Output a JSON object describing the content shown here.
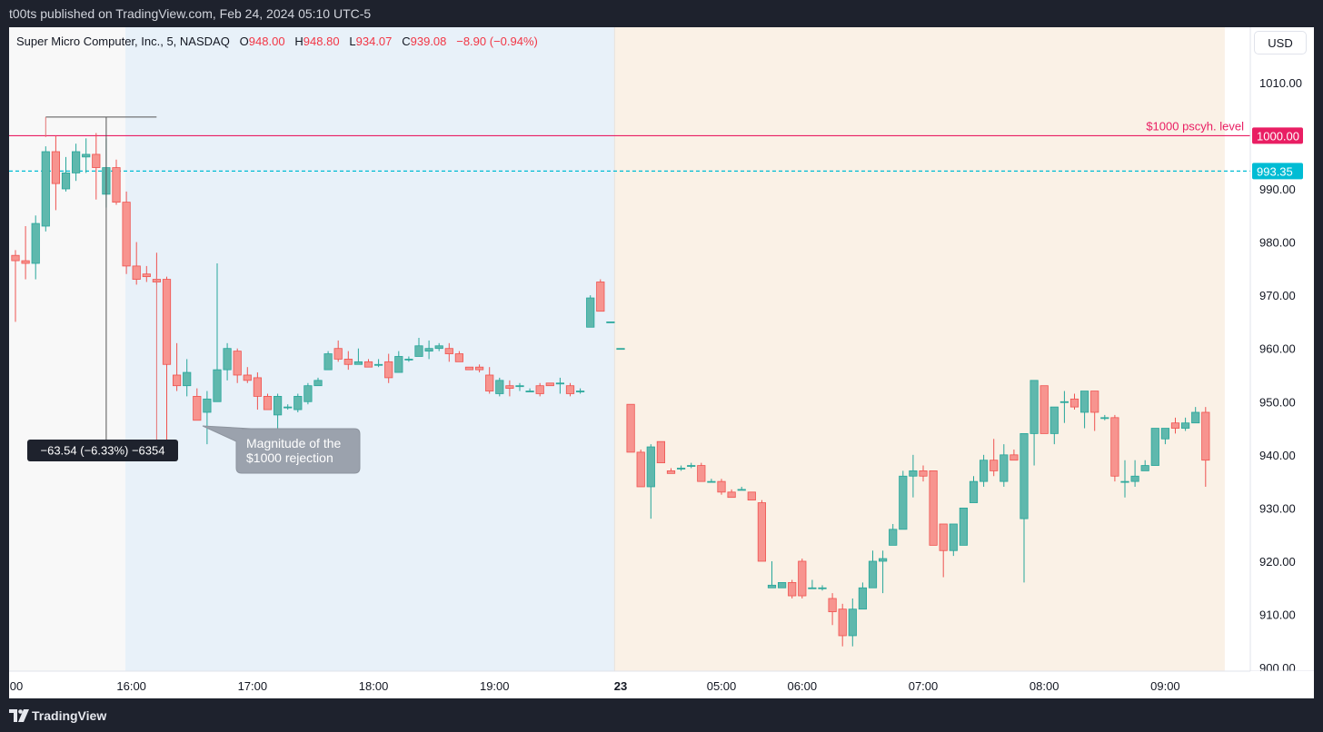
{
  "header": {
    "published_text": "t00ts published on TradingView.com, Feb 24, 2024 05:10 UTC-5"
  },
  "legend": {
    "symbol": "Super Micro Computer, Inc., 5, NASDAQ",
    "o_label": "O",
    "o_value": "948.00",
    "h_label": "H",
    "h_value": "948.80",
    "l_label": "L",
    "l_value": "934.07",
    "c_label": "C",
    "c_value": "939.08",
    "change": "−8.90 (−0.94%)"
  },
  "currency_button": "USD",
  "footer": {
    "brand": "TradingView",
    "logo_icon": "tradingview-logo-icon"
  },
  "colors": {
    "up": "#26a69a",
    "up_fill": "#5fb8ad",
    "down": "#ef5350",
    "down_fill": "#f7948f",
    "level_line": "#e91e63",
    "dashed_line": "#00bcd4",
    "session_blue": "#e8f1f9",
    "session_orange": "#faf1e6",
    "session_grey": "#f8f8f8"
  },
  "chart_data": {
    "type": "candlestick",
    "ylim": [
      895,
      1018
    ],
    "y_ticks": [
      "1010.00",
      "990.00",
      "980.00",
      "970.00",
      "960.00",
      "950.00",
      "940.00",
      "930.00",
      "920.00",
      "910.00",
      "900.00"
    ],
    "x_tick_labels": [
      {
        "label": "00",
        "bar": 0,
        "bold": false
      },
      {
        "label": "16:00",
        "bar": 11.5,
        "bold": false
      },
      {
        "label": "17:00",
        "bar": 23.5,
        "bold": false
      },
      {
        "label": "18:00",
        "bar": 35.5,
        "bold": false
      },
      {
        "label": "19:00",
        "bar": 47.5,
        "bold": false
      },
      {
        "label": "23",
        "bar": 60,
        "bold": true
      },
      {
        "label": "05:00",
        "bar": 70,
        "bold": false
      },
      {
        "label": "06:00",
        "bar": 78,
        "bold": false
      },
      {
        "label": "07:00",
        "bar": 90,
        "bold": false
      },
      {
        "label": "08:00",
        "bar": 102,
        "bold": false
      },
      {
        "label": "09:00",
        "bar": 114,
        "bold": false
      }
    ],
    "sessions": [
      {
        "from_bar": -1,
        "to_bar": 10.9,
        "color": "session_grey"
      },
      {
        "from_bar": 10.9,
        "to_bar": 59.4,
        "color": "session_blue"
      },
      {
        "from_bar": 59.4,
        "to_bar": 119.9,
        "color": "session_orange"
      }
    ],
    "horizontal_levels": [
      {
        "value": 1000.0,
        "label": "1000.00",
        "text": "$1000 pscyh. level",
        "color_key": "level_line",
        "style": "solid"
      },
      {
        "value": 993.35,
        "label": "993.35",
        "color_key": "dashed_line",
        "style": "dashed"
      }
    ],
    "measure": {
      "from_bar": 3,
      "to_bar": 14,
      "top_value": 1003.5,
      "bottom_value": 940.0,
      "arrow_bar": 9,
      "label": "−63.54 (−6.33%) −6354"
    },
    "callout": {
      "lines": [
        "Magnitude of the",
        "$1000 rejection"
      ]
    },
    "candles": [
      [
        977.5,
        978.5,
        965,
        976.5
      ],
      [
        976.5,
        983,
        973,
        976
      ],
      [
        976,
        985,
        973,
        983.5
      ],
      [
        983,
        998,
        982,
        997
      ],
      [
        997,
        1000,
        986,
        991
      ],
      [
        990,
        996,
        989.5,
        993
      ],
      [
        993,
        998.5,
        991.5,
        997
      ],
      [
        996,
        999.5,
        993,
        996.5
      ],
      [
        996.5,
        1000.5,
        988,
        994
      ],
      [
        989,
        999.5,
        986.5,
        994
      ],
      [
        994,
        995.5,
        987,
        987.5
      ],
      [
        987.5,
        989.5,
        974,
        975.5
      ],
      [
        975.5,
        980,
        972,
        973
      ],
      [
        974,
        975.5,
        972.5,
        973.5
      ],
      [
        973,
        978,
        972,
        972.5
      ],
      [
        973,
        973.5,
        940,
        957
      ],
      [
        955,
        961,
        952,
        953
      ],
      [
        953,
        958,
        951,
        955.5
      ],
      [
        951,
        952.5,
        946.5,
        946.5
      ],
      [
        948,
        952,
        942,
        950.5
      ],
      [
        950,
        976,
        950,
        956
      ],
      [
        956,
        961,
        954,
        960
      ],
      [
        959.5,
        960,
        953.5,
        955
      ],
      [
        955,
        956.5,
        953.5,
        954
      ],
      [
        954.5,
        955.5,
        948.5,
        951
      ],
      [
        951,
        951.5,
        948.5,
        948.5
      ],
      [
        947.5,
        951.5,
        945,
        951
      ],
      [
        949,
        949.5,
        948.5,
        949
      ],
      [
        948.5,
        951.5,
        948,
        951
      ],
      [
        950,
        953.5,
        949.5,
        953
      ],
      [
        953,
        954.5,
        953,
        954
      ],
      [
        956,
        959.5,
        956,
        959
      ],
      [
        960,
        961.5,
        957.5,
        958
      ],
      [
        958,
        959.5,
        956,
        957
      ],
      [
        957,
        960,
        957,
        957.5
      ],
      [
        957.5,
        958,
        956.5,
        956.5
      ],
      [
        957,
        958,
        956.5,
        957
      ],
      [
        957.5,
        959,
        953.5,
        954.5
      ],
      [
        955.5,
        959.5,
        955.5,
        958.5
      ],
      [
        958,
        958.5,
        957.5,
        958
      ],
      [
        958.5,
        962,
        958.5,
        960.5
      ],
      [
        959.5,
        961.5,
        958,
        960
      ],
      [
        960,
        961,
        959.5,
        960.5
      ],
      [
        960,
        961,
        957.5,
        959
      ],
      [
        959,
        959.5,
        957.5,
        957.5
      ],
      [
        956.5,
        956.5,
        956,
        956
      ],
      [
        956.5,
        957,
        955.5,
        956
      ],
      [
        955,
        956.5,
        951.5,
        952
      ],
      [
        951.5,
        954.5,
        951,
        954
      ],
      [
        953,
        954,
        951,
        952.5
      ],
      [
        953,
        953.5,
        952,
        953
      ],
      [
        952,
        952.5,
        952,
        952
      ],
      [
        953,
        953.5,
        951,
        951.5
      ],
      [
        953.5,
        953.5,
        953,
        953
      ],
      [
        953.5,
        954.5,
        951.5,
        953.5
      ],
      [
        953,
        953.5,
        951,
        951.5
      ],
      [
        952,
        952.5,
        951.5,
        952
      ],
      [
        964,
        970,
        964,
        969.5
      ],
      [
        972.5,
        973,
        967,
        967
      ],
      [
        965,
        965,
        965,
        965
      ],
      [
        960,
        960,
        960,
        960
      ],
      [
        949.5,
        949.5,
        940.5,
        940.5
      ],
      [
        940.5,
        941,
        934,
        934
      ],
      [
        934,
        942,
        928,
        941.5
      ],
      [
        942.5,
        942.5,
        938.5,
        938.5
      ],
      [
        937,
        937.5,
        936.5,
        936.5
      ],
      [
        937.5,
        938,
        937,
        937.5
      ],
      [
        938,
        938.5,
        937.5,
        938
      ],
      [
        938,
        938.5,
        935,
        935
      ],
      [
        935,
        935.5,
        935,
        935
      ],
      [
        935,
        935.5,
        932.5,
        933
      ],
      [
        933,
        933.5,
        932,
        932
      ],
      [
        933.5,
        934,
        933.5,
        933.5
      ],
      [
        933,
        933,
        931.5,
        931.5
      ],
      [
        931,
        931.5,
        920,
        920
      ],
      [
        915,
        920,
        915,
        915.5
      ],
      [
        915,
        916,
        915,
        916
      ],
      [
        916,
        916.5,
        913,
        913.5
      ],
      [
        920,
        920.5,
        913,
        913.5
      ],
      [
        915,
        916.5,
        915,
        915
      ],
      [
        915,
        915.5,
        914.5,
        915
      ],
      [
        913,
        914,
        908,
        910.5
      ],
      [
        911,
        912,
        904,
        906
      ],
      [
        906,
        913,
        904,
        911
      ],
      [
        911,
        916,
        911,
        915
      ],
      [
        915,
        922,
        915,
        920
      ],
      [
        920,
        922,
        914,
        920.5
      ],
      [
        923,
        927,
        923,
        926
      ],
      [
        926,
        937,
        926,
        936
      ],
      [
        936,
        940,
        932,
        937
      ],
      [
        937,
        938,
        935,
        936
      ],
      [
        937,
        937,
        923,
        923
      ],
      [
        927,
        927,
        917,
        922
      ],
      [
        922,
        927,
        921,
        927
      ],
      [
        923,
        930,
        923,
        930
      ],
      [
        931,
        936,
        931,
        935
      ],
      [
        935,
        940,
        934,
        939
      ],
      [
        939,
        943,
        936,
        937
      ],
      [
        935,
        942,
        934,
        940
      ],
      [
        940,
        941,
        939,
        939
      ],
      [
        928,
        944,
        916,
        944
      ],
      [
        944,
        954,
        938,
        954
      ],
      [
        953,
        953,
        944,
        944
      ],
      [
        944,
        949,
        942,
        949
      ],
      [
        950,
        952,
        946,
        950
      ],
      [
        950.5,
        951.5,
        948.5,
        949
      ],
      [
        948,
        951,
        945,
        952
      ],
      [
        952,
        952,
        944.5,
        948
      ],
      [
        947,
        947.5,
        946.5,
        947
      ],
      [
        947,
        947.5,
        935,
        936
      ],
      [
        935,
        939,
        932,
        935
      ],
      [
        935,
        939,
        934,
        936
      ],
      [
        937,
        939,
        937,
        938
      ],
      [
        938,
        945,
        938,
        945
      ],
      [
        943,
        945,
        942,
        945
      ],
      [
        946,
        947,
        944,
        945
      ],
      [
        945,
        947,
        944.5,
        946
      ],
      [
        946,
        949,
        946,
        948
      ],
      [
        948,
        949,
        934,
        939
      ]
    ]
  }
}
